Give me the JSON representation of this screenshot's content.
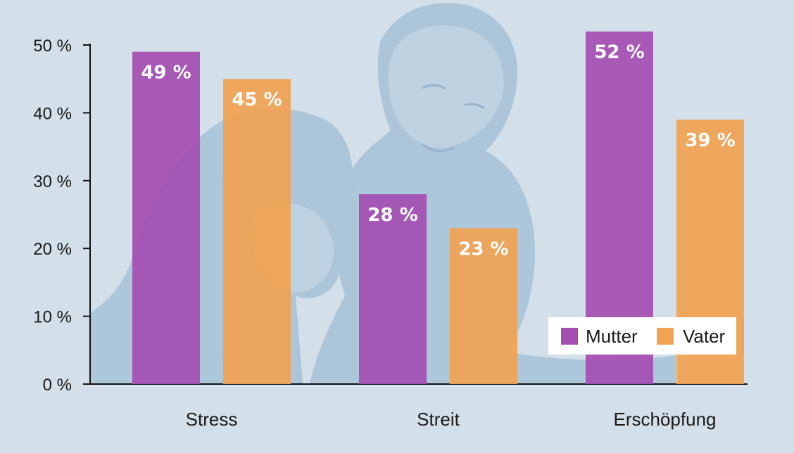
{
  "chart_data": {
    "type": "bar",
    "categories": [
      "Stress",
      "Streit",
      "Erschöpfung"
    ],
    "series": [
      {
        "name": "Mutter",
        "color": "#a44fb0",
        "values": [
          49,
          28,
          52
        ],
        "labels": [
          "49 %",
          "28 %",
          "52 %"
        ]
      },
      {
        "name": "Vater",
        "color": "#f0a352",
        "values": [
          45,
          23,
          39
        ],
        "labels": [
          "45 %",
          "23 %",
          "39 %"
        ]
      }
    ],
    "yticks": [
      0,
      10,
      20,
      30,
      40,
      50
    ],
    "ytick_labels": [
      "0 %",
      "10 %",
      "20 %",
      "30 %",
      "40 %",
      "50 %"
    ],
    "ylim": [
      0,
      50
    ],
    "legend_position": "bottom-right",
    "grid": false,
    "background_color": "#d3dfe9",
    "illustration_color": "#a3bfd6"
  }
}
